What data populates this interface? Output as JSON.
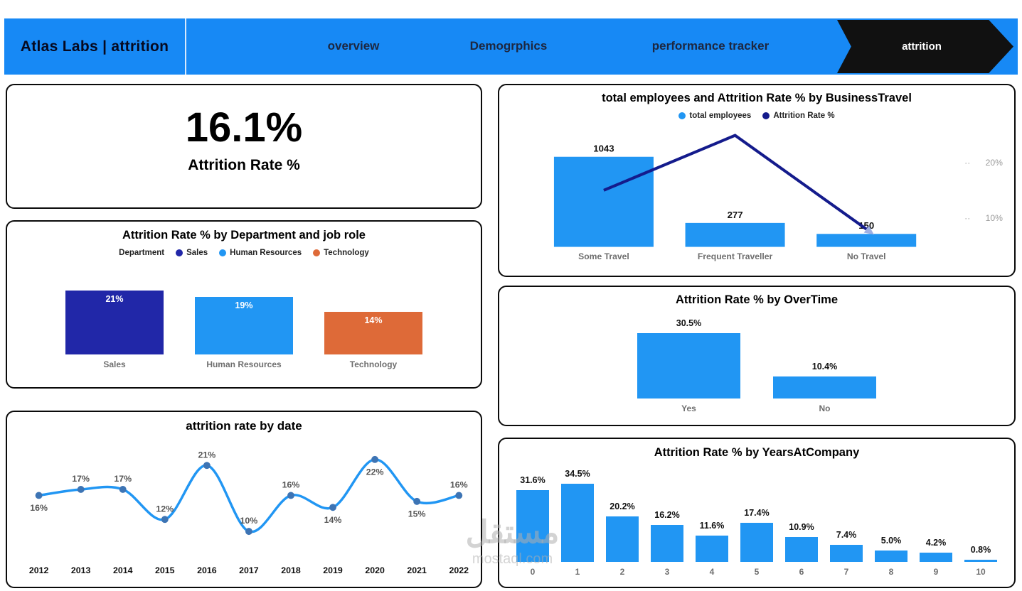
{
  "header": {
    "title": "Atlas Labs | attrition",
    "tabs": [
      {
        "label": "overview",
        "active": false
      },
      {
        "label": "Demogrphics",
        "active": false
      },
      {
        "label": "performance tracker",
        "active": false
      },
      {
        "label": "attrition",
        "active": true
      }
    ],
    "colors": {
      "bar_background": "#1789F5",
      "active_tab_background": "#111111"
    }
  },
  "kpi": {
    "value": "16.1%",
    "label": "Attrition Rate %"
  },
  "chart_data": [
    {
      "id": "department",
      "type": "bar",
      "title": "Attrition Rate % by Department and job role",
      "legend_title": "Department",
      "legend": [
        {
          "label": "Sales",
          "color": "#2127A8"
        },
        {
          "label": "Human Resources",
          "color": "#2196F3"
        },
        {
          "label": "Technology",
          "color": "#DE6A38"
        }
      ],
      "categories": [
        "Sales",
        "Human Resources",
        "Technology"
      ],
      "values": [
        21,
        19,
        14
      ],
      "value_labels": [
        "21%",
        "19%",
        "14%"
      ],
      "colors": [
        "#2127A8",
        "#2196F3",
        "#DE6A38"
      ],
      "label_position": "inside"
    },
    {
      "id": "by_date",
      "type": "line",
      "title": "attrition rate by date",
      "x": [
        "2012",
        "2013",
        "2014",
        "2015",
        "2016",
        "2017",
        "2018",
        "2019",
        "2020",
        "2021",
        "2022"
      ],
      "values": [
        16,
        17,
        17,
        12,
        21,
        10,
        16,
        14,
        22,
        15,
        16
      ],
      "value_labels": [
        "16%",
        "17%",
        "17%",
        "12%",
        "21%",
        "10%",
        "16%",
        "14%",
        "22%",
        "15%",
        "16%"
      ],
      "color": "#2196F3",
      "marker_color": "#3D74B4",
      "ylim": [
        9,
        24
      ]
    },
    {
      "id": "business_travel",
      "type": "combo",
      "title": "total employees and Attrition Rate % by BusinessTravel",
      "categories": [
        "Some Travel",
        "Frequent Traveller",
        "No Travel"
      ],
      "series": [
        {
          "name": "total employees",
          "chart": "bar",
          "values": [
            1043,
            277,
            150
          ],
          "value_labels": [
            "1043",
            "277",
            "150"
          ],
          "color": "#2196F3"
        },
        {
          "name": "Attrition Rate %",
          "chart": "line",
          "values": [
            15,
            24.9,
            8
          ],
          "color": "#141B8C"
        }
      ],
      "y2_axis": {
        "ticks": [
          "20%",
          "10%"
        ],
        "tick_values": [
          20,
          10
        ]
      }
    },
    {
      "id": "overtime",
      "type": "bar",
      "title": "Attrition Rate % by OverTime",
      "categories": [
        "Yes",
        "No"
      ],
      "values": [
        30.5,
        10.4
      ],
      "value_labels": [
        "30.5%",
        "10.4%"
      ],
      "colors": [
        "#2196F3",
        "#2196F3"
      ],
      "label_position": "above"
    },
    {
      "id": "years_at_company",
      "type": "bar",
      "title": "Attrition Rate % by YearsAtCompany",
      "categories": [
        "0",
        "1",
        "2",
        "3",
        "4",
        "5",
        "6",
        "7",
        "8",
        "9",
        "10"
      ],
      "values": [
        31.6,
        34.5,
        20.2,
        16.2,
        11.6,
        17.4,
        10.9,
        7.4,
        5.0,
        4.2,
        0.8
      ],
      "value_labels": [
        "31.6%",
        "34.5%",
        "20.2%",
        "16.2%",
        "11.6%",
        "17.4%",
        "10.9%",
        "7.4%",
        "5.0%",
        "4.2%",
        "0.8%"
      ],
      "colors": [
        "#2196F3"
      ],
      "label_position": "above"
    }
  ],
  "watermark": {
    "text": "مستقل",
    "domain": "mostaql.com"
  }
}
